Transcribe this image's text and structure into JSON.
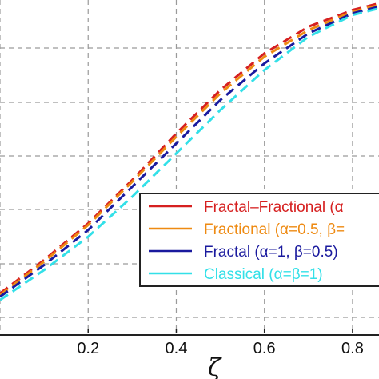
{
  "chart_data": {
    "type": "line",
    "xlabel": "ζ",
    "ylabel": "",
    "xlim": [
      0.0,
      0.86
    ],
    "ylim": [
      0.0,
      1.0
    ],
    "grid": true,
    "x_ticks": [
      "0.2",
      "0.4",
      "0.6",
      "0.8"
    ],
    "legend_placement": "center-right",
    "legend": [
      "Fractal–Fractional (α",
      "Fractional (α=0.5, β=",
      "Fractal (α=1, β=0.5)",
      "Classical (α=β=1)"
    ],
    "series": [
      {
        "name": "Fractal–Fractional (α",
        "color": "#d62020",
        "x": [
          0.0,
          0.1,
          0.2,
          0.3,
          0.4,
          0.5,
          0.6,
          0.7,
          0.8,
          0.86
        ],
        "values": [
          0.12,
          0.22,
          0.33,
          0.46,
          0.6,
          0.73,
          0.84,
          0.92,
          0.97,
          0.99
        ]
      },
      {
        "name": "Fractional (α=0.5, β=",
        "color": "#ee8a12",
        "x": [
          0.0,
          0.1,
          0.2,
          0.3,
          0.4,
          0.5,
          0.6,
          0.7,
          0.8,
          0.86
        ],
        "values": [
          0.115,
          0.215,
          0.325,
          0.455,
          0.59,
          0.72,
          0.83,
          0.91,
          0.965,
          0.985
        ]
      },
      {
        "name": "Fractal (α=1, β=0.5)",
        "color": "#1a1a9e",
        "x": [
          0.0,
          0.1,
          0.2,
          0.3,
          0.4,
          0.5,
          0.6,
          0.7,
          0.8,
          0.86
        ],
        "values": [
          0.11,
          0.205,
          0.31,
          0.44,
          0.57,
          0.7,
          0.81,
          0.9,
          0.96,
          0.98
        ]
      },
      {
        "name": "Classical (α=β=1)",
        "color": "#33e0e8",
        "x": [
          0.0,
          0.1,
          0.2,
          0.3,
          0.4,
          0.5,
          0.6,
          0.7,
          0.8,
          0.86
        ],
        "values": [
          0.1,
          0.19,
          0.29,
          0.41,
          0.54,
          0.67,
          0.79,
          0.89,
          0.955,
          0.975
        ]
      }
    ]
  }
}
